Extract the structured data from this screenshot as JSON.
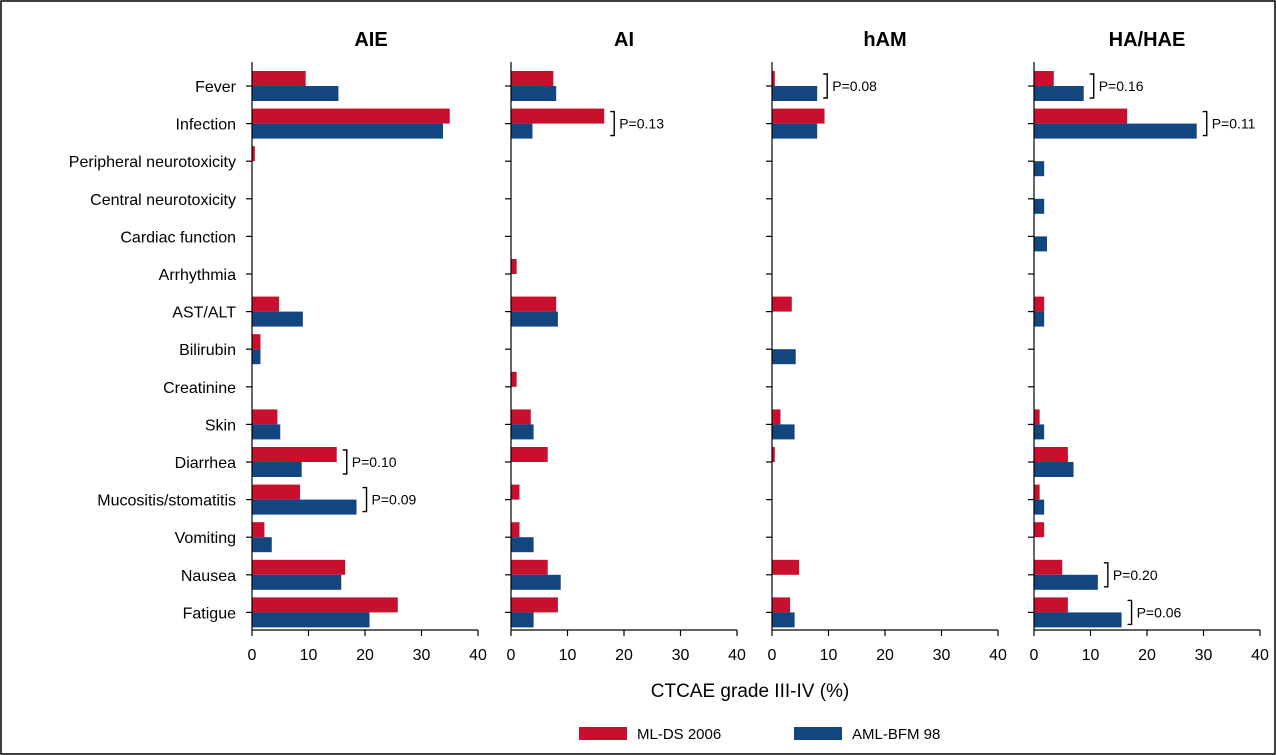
{
  "chart_data": {
    "type": "bar",
    "orientation": "horizontal",
    "categories": [
      "Fever",
      "Infection",
      "Peripheral neurotoxicity",
      "Central neurotoxicity",
      "Cardiac function",
      "Arrhythmia",
      "AST/ALT",
      "Bilirubin",
      "Creatinine",
      "Skin",
      "Diarrhea",
      "Mucositis/stomatitis",
      "Vomiting",
      "Nausea",
      "Fatigue"
    ],
    "xlabel": "CTCAE grade III-IV (%)",
    "xlim": [
      0,
      40
    ],
    "xticks": [
      0,
      10,
      20,
      30,
      40
    ],
    "legend": {
      "placement": "bottom",
      "entries": [
        {
          "name": "ML-DS 2006",
          "color": "#c8102e"
        },
        {
          "name": "AML-BFM 98",
          "color": "#13467e"
        }
      ]
    },
    "panels": [
      {
        "title": "AIE",
        "series": [
          {
            "name": "ML-DS 2006",
            "values": [
              9.5,
              35.0,
              0.5,
              0,
              0,
              0,
              4.8,
              1.5,
              0,
              4.5,
              15.0,
              8.5,
              2.2,
              16.5,
              25.8
            ]
          },
          {
            "name": "AML-BFM 98",
            "values": [
              15.3,
              33.8,
              0,
              0,
              0,
              0,
              9.0,
              1.5,
              0,
              5.0,
              8.8,
              18.5,
              3.5,
              15.8,
              20.8
            ]
          }
        ],
        "annotations": [
          {
            "category": "Diarrhea",
            "text": "P=0.10"
          },
          {
            "category": "Mucositis/stomatitis",
            "text": "P=0.09"
          }
        ]
      },
      {
        "title": "AI",
        "series": [
          {
            "name": "ML-DS 2006",
            "values": [
              7.5,
              16.5,
              0,
              0,
              0,
              1.0,
              8.0,
              0,
              1.0,
              3.5,
              6.5,
              1.5,
              1.5,
              6.5,
              8.3
            ]
          },
          {
            "name": "AML-BFM 98",
            "values": [
              8.0,
              3.8,
              0,
              0,
              0,
              0,
              8.3,
              0,
              0,
              4.0,
              0,
              0,
              4.0,
              8.8,
              4.0
            ]
          }
        ],
        "annotations": [
          {
            "category": "Infection",
            "text": "P=0.13"
          }
        ]
      },
      {
        "title": "hAM",
        "series": [
          {
            "name": "ML-DS 2006",
            "values": [
              0.5,
              9.3,
              0,
              0,
              0,
              0,
              3.5,
              0,
              0,
              1.5,
              0.5,
              0,
              0,
              4.8,
              3.2
            ]
          },
          {
            "name": "AML-BFM 98",
            "values": [
              8.0,
              8.0,
              0,
              0,
              0,
              0,
              0,
              4.2,
              0,
              4.0,
              0,
              0,
              0,
              0,
              4.0
            ]
          }
        ],
        "annotations": [
          {
            "category": "Fever",
            "text": "P=0.08"
          }
        ]
      },
      {
        "title": "HA/HAE",
        "series": [
          {
            "name": "ML-DS 2006",
            "values": [
              3.5,
              16.5,
              0,
              0,
              0,
              0,
              1.8,
              0,
              0,
              1.0,
              6.0,
              1.0,
              1.8,
              5.0,
              6.0
            ]
          },
          {
            "name": "AML-BFM 98",
            "values": [
              8.8,
              28.8,
              1.8,
              1.8,
              2.3,
              0,
              1.8,
              0,
              0,
              1.8,
              7.0,
              1.8,
              0,
              11.3,
              15.5
            ]
          }
        ],
        "annotations": [
          {
            "category": "Fever",
            "text": "P=0.16"
          },
          {
            "category": "Infection",
            "text": "P=0.11"
          },
          {
            "category": "Nausea",
            "text": "P=0.20"
          },
          {
            "category": "Fatigue",
            "text": "P=0.06"
          }
        ]
      }
    ]
  }
}
